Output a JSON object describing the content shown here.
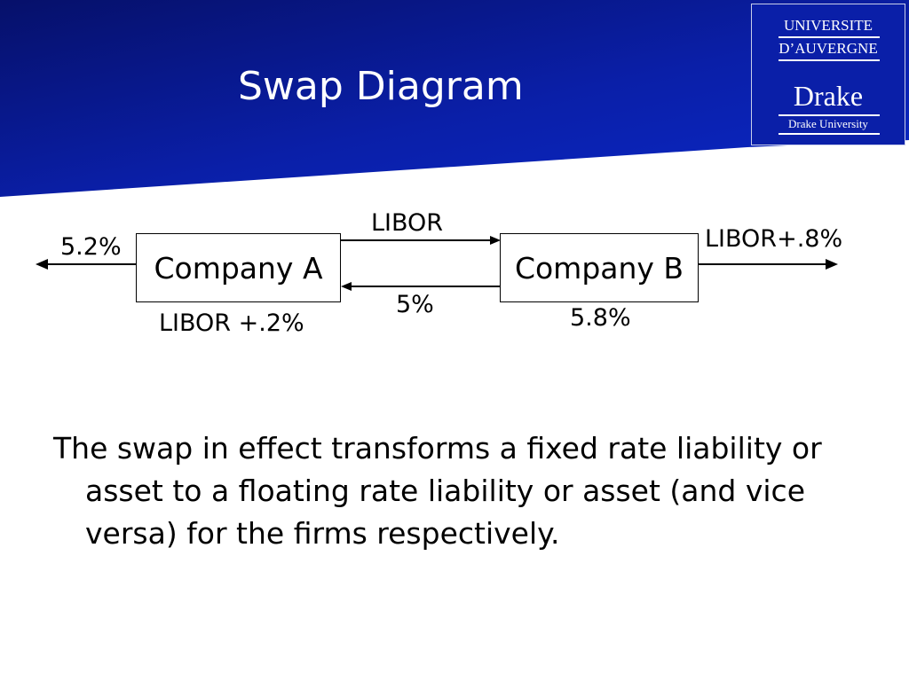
{
  "slide": {
    "title": "Swap Diagram",
    "body": "The swap in effect transforms a fixed rate liability or asset to a floating rate liability or asset  (and vice versa) for the firms respectively."
  },
  "logo": {
    "line1": "UNIVERSITE",
    "line2": "D’AUVERGNE",
    "brand": "Drake",
    "subtitle": "Drake University"
  },
  "diagram": {
    "nodes": {
      "company_a": "Company A",
      "company_b": "Company B"
    },
    "flows": {
      "a_out": "5.2%",
      "a_to_b": "LIBOR",
      "b_to_a": "5%",
      "b_out": "LIBOR+.8%",
      "a_below": "LIBOR +.2%",
      "b_below": "5.8%"
    }
  },
  "colors": {
    "banner_dark": "#06106a",
    "banner_light": "#0a28c8",
    "logo_bg": "#0a1fa8"
  }
}
